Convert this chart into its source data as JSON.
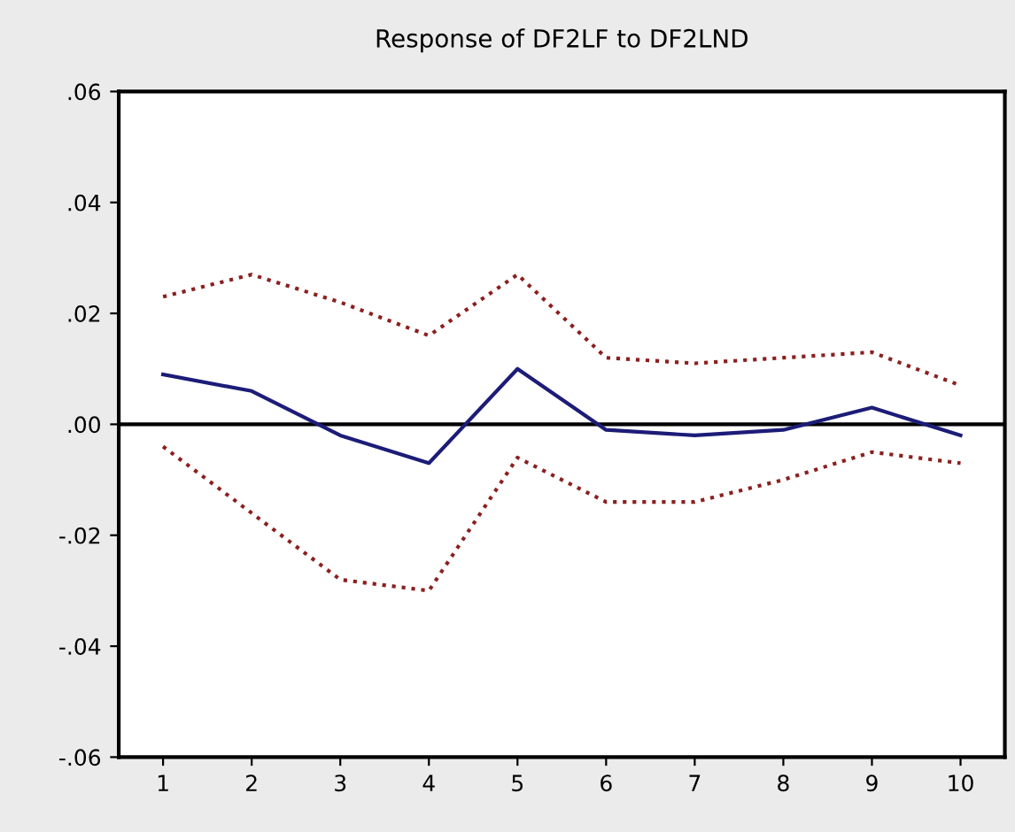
{
  "chart_data": {
    "type": "line",
    "title": "Response of DF2LF to DF2LND",
    "x": [
      1,
      2,
      3,
      4,
      5,
      6,
      7,
      8,
      9,
      10
    ],
    "series": [
      {
        "color": "#1c1c78",
        "values": [
          0.009,
          0.006,
          -0.002,
          -0.007,
          0.01,
          -0.001,
          -0.002,
          -0.001,
          0.003,
          -0.002
        ],
        "line_style": "solid"
      },
      {
        "color": "#8b2020",
        "values": [
          0.023,
          0.027,
          0.022,
          0.016,
          0.027,
          0.012,
          0.011,
          0.012,
          0.013,
          0.007
        ],
        "line_style": "dotted"
      },
      {
        "color": "#8b2020",
        "values": [
          -0.004,
          -0.016,
          -0.028,
          -0.03,
          -0.006,
          -0.014,
          -0.014,
          -0.01,
          -0.005,
          -0.007
        ],
        "line_style": "dotted"
      }
    ],
    "xlim": [
      0.5,
      10.5
    ],
    "xticks": [
      1,
      2,
      3,
      4,
      5,
      6,
      7,
      8,
      9,
      10
    ],
    "ylim": [
      -0.06,
      0.06
    ],
    "yticks": [
      {
        "value": -0.06,
        "label": "-.06"
      },
      {
        "value": -0.04,
        "label": "-.04"
      },
      {
        "value": -0.02,
        "label": "-.02"
      },
      {
        "value": 0,
        "label": ".00"
      },
      {
        "value": 0.02,
        "label": ".02"
      },
      {
        "value": 0.04,
        "label": ".04"
      },
      {
        "value": 0.06,
        "label": ".06"
      }
    ],
    "ref_lines": [
      {
        "axis": "y",
        "value": 0,
        "color": "#000000",
        "line_style": "solid"
      }
    ],
    "grid": false,
    "marker": "none"
  }
}
